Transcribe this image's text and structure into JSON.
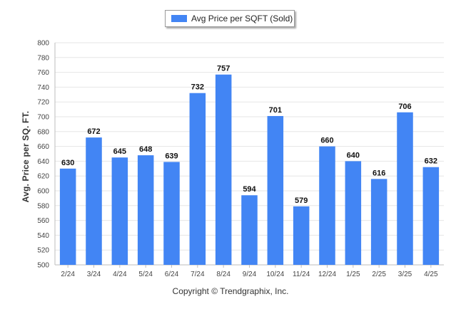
{
  "legend": {
    "label": "Avg Price per SQFT (Sold)",
    "color": "#4285f4"
  },
  "copyright": "Copyright © Trendgraphix, Inc.",
  "chart_data": {
    "type": "bar",
    "ylabel": "Avg. Price per SQ. FT.",
    "xlabel": "",
    "ylim": [
      500,
      800
    ],
    "yticks": [
      500,
      520,
      540,
      560,
      580,
      600,
      620,
      640,
      660,
      680,
      700,
      720,
      740,
      760,
      780,
      800
    ],
    "grid": true,
    "legend_position": "top-center",
    "categories": [
      "2/24",
      "3/24",
      "4/24",
      "5/24",
      "6/24",
      "7/24",
      "8/24",
      "9/24",
      "10/24",
      "11/24",
      "12/24",
      "1/25",
      "2/25",
      "3/25",
      "4/25"
    ],
    "series": [
      {
        "name": "Avg Price per SQFT (Sold)",
        "color": "#4285f4",
        "values": [
          630,
          672,
          645,
          648,
          639,
          732,
          757,
          594,
          701,
          579,
          660,
          640,
          616,
          706,
          632
        ]
      }
    ]
  }
}
